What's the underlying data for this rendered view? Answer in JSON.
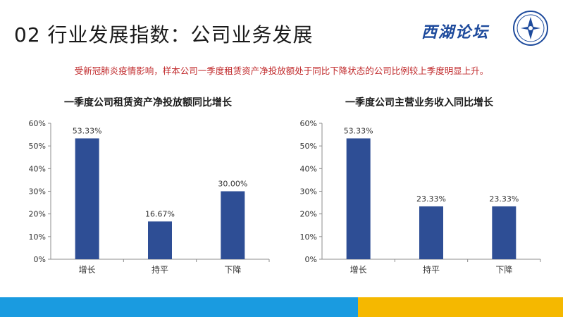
{
  "slide": {
    "title": "02 行业发展指数：公司业务发展",
    "brand": "西湖论坛",
    "subtitle": "受新冠肺炎疫情影响，样本公司一季度租赁资产净投放额处于同比下降状态的公司比例较上季度明显上升。"
  },
  "colors": {
    "bar": "#2e4e95",
    "subtitle": "#c0282a",
    "band_blue": "#1a9be0",
    "band_yellow": "#f5b800"
  },
  "chart_data": [
    {
      "type": "bar",
      "title": "一季度公司租赁资产净投放额同比增长",
      "categories": [
        "增长",
        "持平",
        "下降"
      ],
      "values": [
        53.33,
        16.67,
        30.0
      ],
      "value_labels": [
        "53.33%",
        "16.67%",
        "30.00%"
      ],
      "ylim": [
        0,
        60
      ],
      "yticks": [
        "0%",
        "10%",
        "20%",
        "30%",
        "40%",
        "50%",
        "60%"
      ],
      "xlabel": "",
      "ylabel": ""
    },
    {
      "type": "bar",
      "title": "一季度公司主营业务收入同比增长",
      "categories": [
        "增长",
        "持平",
        "下降"
      ],
      "values": [
        53.33,
        23.33,
        23.33
      ],
      "value_labels": [
        "53.33%",
        "23.33%",
        "23.33%"
      ],
      "ylim": [
        0,
        60
      ],
      "yticks": [
        "0%",
        "10%",
        "20%",
        "30%",
        "40%",
        "50%",
        "60%"
      ],
      "xlabel": "",
      "ylabel": ""
    }
  ]
}
